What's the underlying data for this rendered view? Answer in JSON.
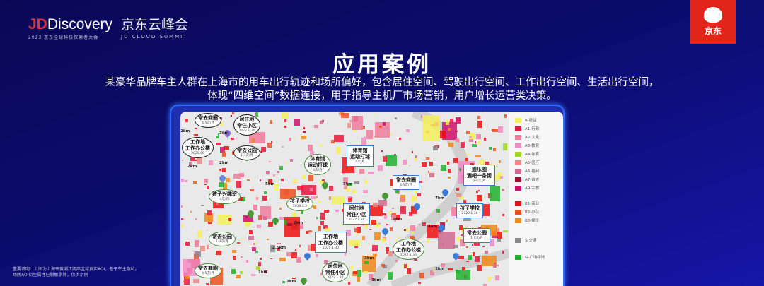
{
  "header": {
    "logo_prefix": "JD",
    "logo_main": "Discovery",
    "logo_sub": "2023 京东全球科技探索者大会",
    "summit_cn": "京东云峰会",
    "summit_en": "JD CLOUD SUMMIT",
    "brand": "京东"
  },
  "title": "应用案例",
  "subtitle": [
    "某豪华品牌车主人群在上海市的用车出行轨迹和场所偏好，包含居住空间、驾驶出行空间、工作出行空间、生活出行空间，",
    "体现“四维空间”数据连接，用于指导主机厂市场营销，用户增长运营类决策。"
  ],
  "map": {
    "callouts": [
      {
        "label": "常去商圈",
        "sub": "4-5次/月",
        "style": "blk"
      },
      {
        "label": "居住地\n常住小区",
        "sub": "2022.1.30",
        "style": "blk"
      },
      {
        "label": "工作地\n工作办公楼",
        "sub": "2020.09",
        "style": "blk"
      },
      {
        "label": "常去公园",
        "sub": "1-3次/月",
        "style": "blk"
      },
      {
        "label": "体育馆\n运动打球",
        "sub": "4次/月",
        "style": "grn"
      },
      {
        "label": "体育馆\n运动打球",
        "sub": "4次/月",
        "style": "blu"
      },
      {
        "label": "娱乐圈\n酒吧一条街",
        "sub": "2-4次/月",
        "style": "blu"
      },
      {
        "label": "常去商圈",
        "sub": "4-5次/月",
        "style": "blu"
      },
      {
        "label": "孩子兴趣班",
        "sub": "4次/月",
        "style": "grn"
      },
      {
        "label": "孩子学校",
        "sub": "2019.2.3",
        "style": "grn"
      },
      {
        "label": "居住地\n常住小区",
        "sub": "2022.1.30",
        "style": "blu"
      },
      {
        "label": "孩子学校",
        "sub": "2022.1.30",
        "style": "blu"
      },
      {
        "label": "常去公园",
        "sub": "1-3次/月",
        "style": "blu"
      },
      {
        "label": "工作地\n工作办公楼",
        "sub": "2020.1.30",
        "style": "blu"
      },
      {
        "label": "常去公园",
        "sub": "1-3次/月",
        "style": "grn"
      },
      {
        "label": "工作地\n工作办公楼",
        "sub": "2020.1.30",
        "style": "grn"
      },
      {
        "label": "常去商圈",
        "sub": "4-5次/月",
        "style": "grn"
      },
      {
        "label": "居住地\n常住小区",
        "sub": "2022.1.30",
        "style": "grn"
      }
    ],
    "distances": [
      "2km",
      "3km",
      "2km",
      "2km",
      "5km",
      "3km",
      "2.5km",
      "1km",
      "3km",
      "2km",
      "7km",
      "4km",
      "3km",
      "1km",
      "2km",
      "2km"
    ]
  },
  "legend": [
    {
      "label": "R-居住",
      "color": "#f5f05a"
    },
    {
      "label": "A1-行政",
      "color": "#e8173c"
    },
    {
      "label": "A2-文化",
      "color": "#f07c9c"
    },
    {
      "label": "A3-教育",
      "color": "#f08cc4"
    },
    {
      "label": "A4-体育",
      "color": "#a0d820"
    },
    {
      "label": "A5-医疗",
      "color": "#f08888"
    },
    {
      "label": "A6-福利",
      "color": "#d06890"
    },
    {
      "label": "A7-古迹",
      "color": "#a80c30"
    },
    {
      "label": "A9-宗教",
      "color": "#d0106c"
    },
    {
      "label": "B1-商业",
      "color": "#ee1010"
    },
    {
      "label": "B2-办公",
      "color": "#ee5020"
    },
    {
      "label": "B3-娱乐",
      "color": "#f08818"
    },
    {
      "label": "S-交通",
      "color": "#888888"
    },
    {
      "label": "G-广场绿地",
      "color": "#22b030"
    }
  ],
  "footnote": [
    "重要说明：上图为上海市黄浦江两岸区域真实AOI，基于车主隐私，",
    "场所AOI衍生属性已脱敏剔除，仅供示例"
  ]
}
